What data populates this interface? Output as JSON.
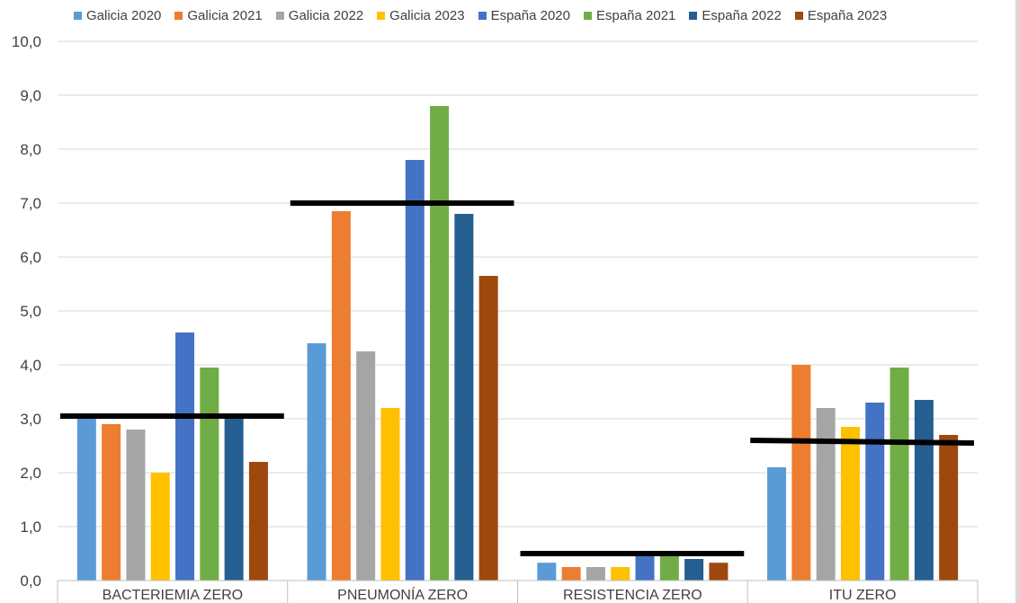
{
  "chart_data": {
    "type": "bar",
    "title": "",
    "xlabel": "",
    "ylabel": "",
    "ylim": [
      0,
      10
    ],
    "yticks": [
      "0,0",
      "1,0",
      "2,0",
      "3,0",
      "4,0",
      "5,0",
      "6,0",
      "7,0",
      "8,0",
      "9,0",
      "10,0"
    ],
    "grid": true,
    "legend_position": "top",
    "categories": [
      "BACTERIEMIA ZERO",
      "PNEUMONÍA ZERO",
      "RESISTENCIA ZERO",
      "ITU ZERO"
    ],
    "series": [
      {
        "name": "Galicia 2020",
        "color": "#5b9bd5",
        "values": [
          3.0,
          4.4,
          0.33,
          2.1
        ]
      },
      {
        "name": "Galicia 2021",
        "color": "#ed7d31",
        "values": [
          2.9,
          6.85,
          0.25,
          4.0
        ]
      },
      {
        "name": "Galicia 2022",
        "color": "#a5a5a5",
        "values": [
          2.8,
          4.25,
          0.25,
          3.2
        ]
      },
      {
        "name": "Galicia 2023",
        "color": "#ffc000",
        "values": [
          2.0,
          3.2,
          0.25,
          2.85
        ]
      },
      {
        "name": "España 2020",
        "color": "#4472c4",
        "values": [
          4.6,
          7.8,
          0.45,
          3.3
        ]
      },
      {
        "name": "España 2021",
        "color": "#70ad47",
        "values": [
          3.95,
          8.8,
          0.45,
          3.95
        ]
      },
      {
        "name": "España 2022",
        "color": "#255e91",
        "values": [
          3.0,
          6.8,
          0.4,
          3.35
        ]
      },
      {
        "name": "España 2023",
        "color": "#9e480e",
        "values": [
          2.2,
          5.65,
          0.33,
          2.7
        ]
      }
    ],
    "reference_lines": [
      {
        "category": "BACTERIEMIA ZERO",
        "value_start": 3.05,
        "value_end": 3.05
      },
      {
        "category": "PNEUMONÍA ZERO",
        "value_start": 7.0,
        "value_end": 7.0
      },
      {
        "category": "RESISTENCIA ZERO",
        "value_start": 0.5,
        "value_end": 0.5
      },
      {
        "category": "ITU ZERO",
        "value_start": 2.6,
        "value_end": 2.55
      }
    ]
  }
}
